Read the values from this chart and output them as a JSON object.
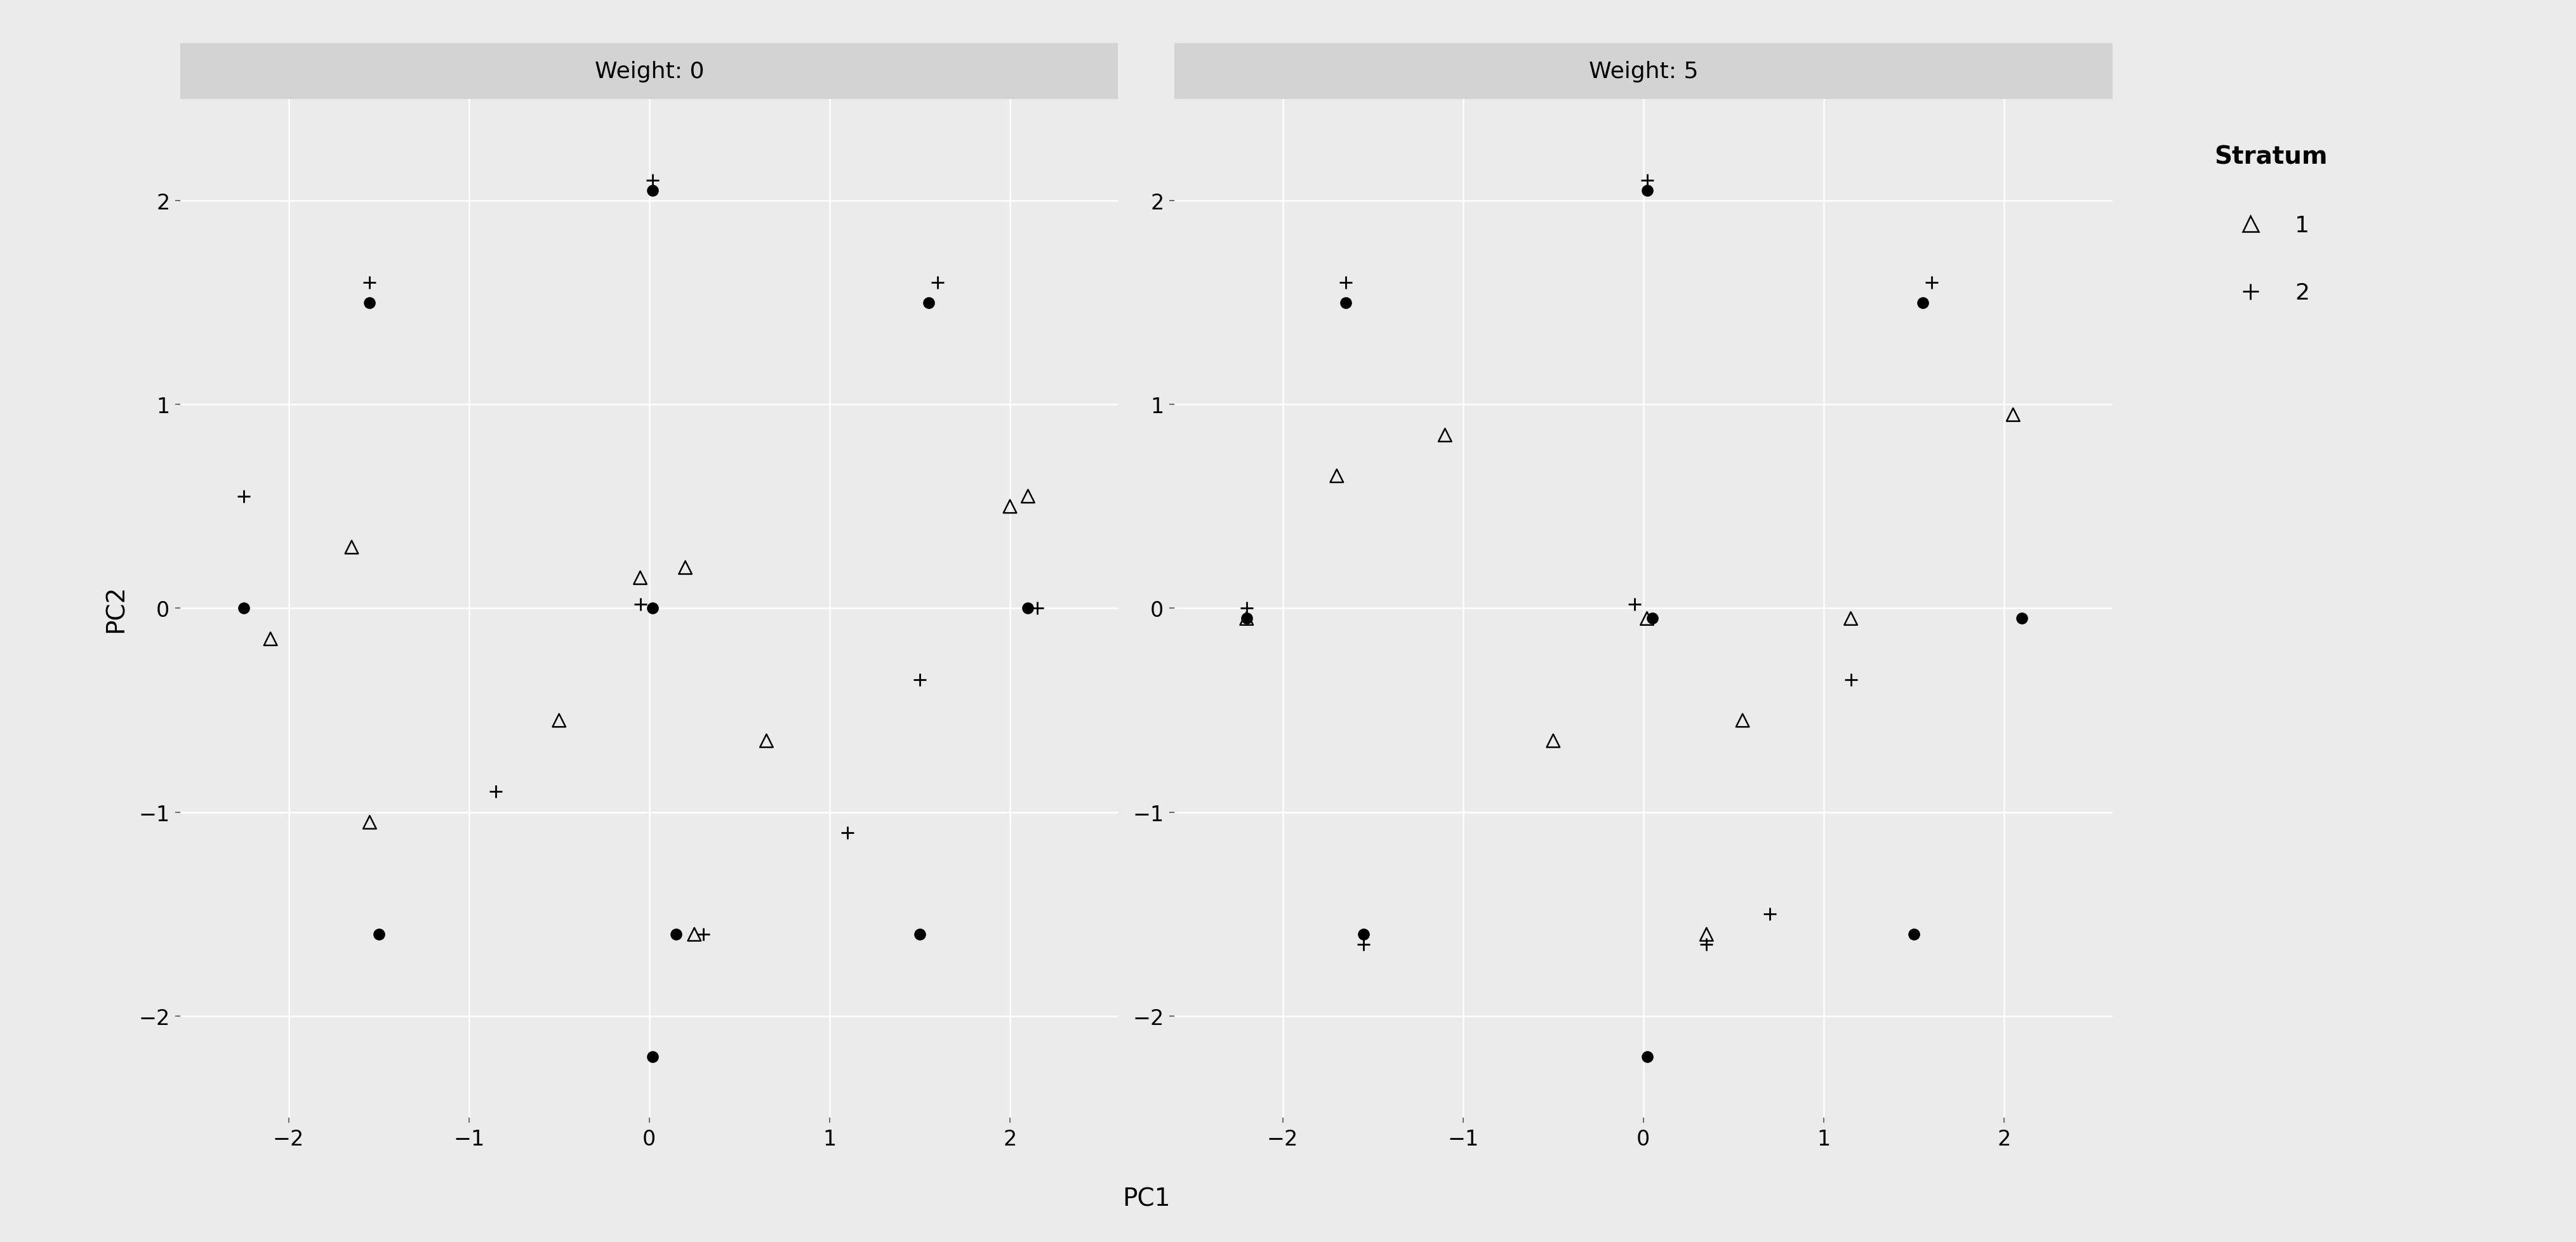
{
  "panel0_title": "Weight: 0",
  "panel1_title": "Weight: 5",
  "xlabel": "PC1",
  "ylabel": "PC2",
  "legend_title": "Stratum",
  "legend_entries": [
    "1",
    "2"
  ],
  "xlim": [
    -2.6,
    2.6
  ],
  "ylim": [
    -2.5,
    2.5
  ],
  "xticks": [
    -2,
    -1,
    0,
    1,
    2
  ],
  "yticks": [
    -2,
    -1,
    0,
    1,
    2
  ],
  "bg_color": "#EBEBEB",
  "fig_bg_color": "#EBEBEB",
  "strip_color": "#D3D3D3",
  "grid_color": "#FFFFFF",
  "panel0_dots": [
    [
      -2.25,
      0.0
    ],
    [
      -1.55,
      1.5
    ],
    [
      0.02,
      2.05
    ],
    [
      0.02,
      0.0
    ],
    [
      0.02,
      -2.2
    ],
    [
      -1.5,
      -1.6
    ],
    [
      0.15,
      -1.6
    ],
    [
      1.55,
      1.5
    ],
    [
      2.1,
      0.0
    ],
    [
      1.5,
      -1.6
    ]
  ],
  "panel0_tri": [
    [
      -1.65,
      0.3
    ],
    [
      -2.1,
      -0.15
    ],
    [
      -1.55,
      -1.05
    ],
    [
      -0.5,
      -0.55
    ],
    [
      0.2,
      0.2
    ],
    [
      -0.05,
      0.15
    ],
    [
      0.25,
      -1.6
    ],
    [
      0.65,
      -0.65
    ],
    [
      2.0,
      0.5
    ],
    [
      2.1,
      0.55
    ]
  ],
  "panel0_plus": [
    [
      -0.05,
      0.02
    ],
    [
      0.02,
      2.1
    ],
    [
      -1.55,
      1.6
    ],
    [
      -2.25,
      0.55
    ],
    [
      -0.85,
      -0.9
    ],
    [
      0.3,
      -1.6
    ],
    [
      1.1,
      -1.1
    ],
    [
      1.5,
      -0.35
    ],
    [
      1.6,
      1.6
    ],
    [
      2.15,
      0.0
    ]
  ],
  "panel1_dots": [
    [
      -2.2,
      -0.05
    ],
    [
      -1.65,
      1.5
    ],
    [
      0.02,
      2.05
    ],
    [
      0.05,
      -0.05
    ],
    [
      0.02,
      -2.2
    ],
    [
      -1.55,
      -1.6
    ],
    [
      1.5,
      -1.6
    ],
    [
      1.55,
      1.5
    ],
    [
      2.1,
      -0.05
    ]
  ],
  "panel1_tri": [
    [
      -2.2,
      -0.05
    ],
    [
      -1.7,
      0.65
    ],
    [
      -1.1,
      0.85
    ],
    [
      -0.5,
      -0.65
    ],
    [
      0.02,
      -0.05
    ],
    [
      0.35,
      -1.6
    ],
    [
      0.55,
      -0.55
    ],
    [
      1.15,
      -0.05
    ],
    [
      2.05,
      0.95
    ]
  ],
  "panel1_plus": [
    [
      -2.2,
      0.0
    ],
    [
      0.02,
      2.1
    ],
    [
      -1.65,
      1.6
    ],
    [
      -0.05,
      0.02
    ],
    [
      -1.55,
      -1.65
    ],
    [
      0.35,
      -1.65
    ],
    [
      0.7,
      -1.5
    ],
    [
      1.15,
      -0.35
    ],
    [
      1.6,
      1.6
    ]
  ],
  "marker_size_tri": 220,
  "marker_size_plus": 200,
  "dot_size": 180,
  "dot_linewidth": 0,
  "tri_linewidth": 1.8,
  "plus_linewidth": 2.0,
  "title_fontsize": 26,
  "label_fontsize": 28,
  "tick_fontsize": 24,
  "legend_fontsize": 26,
  "legend_title_fontsize": 28
}
